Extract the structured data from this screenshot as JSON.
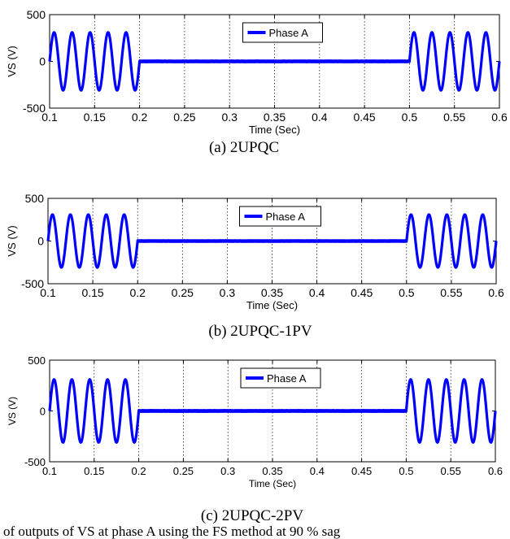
{
  "figure": {
    "bottom_text": "of outputs of VS at phase A using the FS method at 90 % sag"
  },
  "chart_data": [
    {
      "type": "line",
      "caption": "(a) 2UPQC",
      "xlabel": "Time (Sec)",
      "ylabel": "VS (V)",
      "xlim": [
        0.1,
        0.6
      ],
      "ylim": [
        -500,
        500
      ],
      "xticks": [
        "0.1",
        "0.15",
        "0.2",
        "0.25",
        "0.3",
        "0.35",
        "0.4",
        "0.45",
        "0.5",
        "0.55",
        "0.6"
      ],
      "yticks": [
        "500",
        "0",
        "-500"
      ],
      "grid": "vertical dotted",
      "legend_position": "top-center",
      "line_color": "#0000ff",
      "series": [
        {
          "name": "Phase A",
          "frequency_hz": 50,
          "amplitude_v": 310,
          "segments": [
            {
              "t_start": 0.1,
              "t_end": 0.2,
              "amplitude_v": 310
            },
            {
              "t_start": 0.2,
              "t_end": 0.5,
              "amplitude_v": 5
            },
            {
              "t_start": 0.5,
              "t_end": 0.6,
              "amplitude_v": 310
            }
          ]
        }
      ]
    },
    {
      "type": "line",
      "caption": "(b) 2UPQC-1PV",
      "xlabel": "Time (Sec)",
      "ylabel": "VS (V)",
      "xlim": [
        0.1,
        0.6
      ],
      "ylim": [
        -500,
        500
      ],
      "xticks": [
        "0.1",
        "0.15",
        "0.2",
        "0.25",
        "0.3",
        "0.35",
        "0.4",
        "0.45",
        "0.5",
        "0.55",
        "0.6"
      ],
      "yticks": [
        "500",
        "0",
        "-500"
      ],
      "grid": "vertical dotted",
      "legend_position": "top-center",
      "line_color": "#0000ff",
      "series": [
        {
          "name": "Phase A",
          "frequency_hz": 50,
          "amplitude_v": 310,
          "segments": [
            {
              "t_start": 0.1,
              "t_end": 0.2,
              "amplitude_v": 310
            },
            {
              "t_start": 0.2,
              "t_end": 0.5,
              "amplitude_v": 5
            },
            {
              "t_start": 0.5,
              "t_end": 0.6,
              "amplitude_v": 310
            }
          ]
        }
      ]
    },
    {
      "type": "line",
      "caption": "(c) 2UPQC-2PV",
      "xlabel": "Time (Sec)",
      "ylabel": "VS (V)",
      "xlim": [
        0.1,
        0.6
      ],
      "ylim": [
        -500,
        500
      ],
      "xticks": [
        "0.1",
        "0.15",
        "0.2",
        "0.25",
        "0.3",
        "0.35",
        "0.4",
        "0.45",
        "0.5",
        "0.55",
        "0.6"
      ],
      "yticks": [
        "500",
        "0",
        "-500"
      ],
      "grid": "vertical dotted",
      "legend_position": "top-center",
      "line_color": "#0000ff",
      "series": [
        {
          "name": "Phase A",
          "frequency_hz": 50,
          "amplitude_v": 310,
          "segments": [
            {
              "t_start": 0.1,
              "t_end": 0.2,
              "amplitude_v": 310
            },
            {
              "t_start": 0.2,
              "t_end": 0.5,
              "amplitude_v": 5
            },
            {
              "t_start": 0.5,
              "t_end": 0.6,
              "amplitude_v": 310
            }
          ]
        }
      ]
    }
  ]
}
